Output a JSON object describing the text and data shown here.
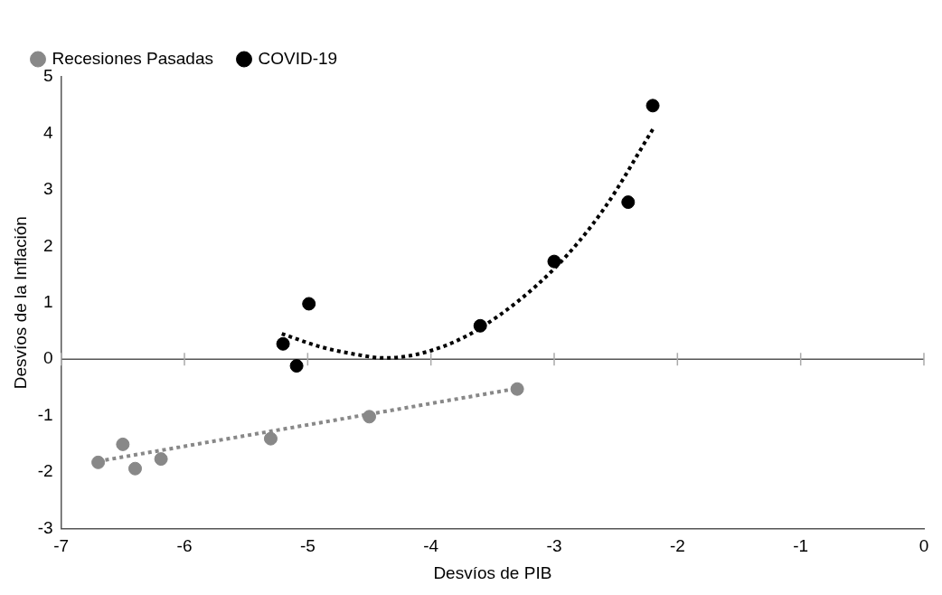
{
  "chart_data": {
    "type": "scatter",
    "xlabel": "Desvíos de PIB",
    "ylabel": "Desvíos de la Inflación",
    "xlim": [
      -7,
      0
    ],
    "xticks": [
      -7,
      -6,
      -5,
      -4,
      -3,
      -2,
      -1,
      0
    ],
    "ylim": [
      -3,
      5
    ],
    "yticks": [
      -3,
      -2,
      -1,
      0,
      1,
      2,
      3,
      4,
      5
    ],
    "legend": "top left",
    "grid": false,
    "ref_lines": [
      {
        "axis": "y",
        "value": 0,
        "color": "#555555",
        "line_style": "solid"
      }
    ],
    "series": [
      {
        "name": "Recesiones Pasadas",
        "color": "#888888",
        "marker": "circle",
        "x": [
          -6.7,
          -6.5,
          -6.4,
          -6.19,
          -5.3,
          -4.5,
          -3.3
        ],
        "values": [
          -1.83,
          -1.51,
          -1.94,
          -1.77,
          -1.41,
          -1.02,
          -0.53
        ]
      },
      {
        "name": "COVID-19",
        "color": "#000000",
        "marker": "circle",
        "x": [
          -5.2,
          -5.09,
          -4.99,
          -3.6,
          -3.0,
          -2.4,
          -2.2
        ],
        "values": [
          0.27,
          -0.12,
          0.98,
          0.59,
          1.73,
          2.78,
          4.49
        ]
      },
      {
        "type": "line",
        "color": "#888888",
        "marker": "none",
        "line_style": "dotted",
        "x": [
          -6.7,
          -3.3
        ],
        "values": [
          -1.81,
          -0.52
        ]
      },
      {
        "type": "line",
        "color": "#000000",
        "marker": "none",
        "line_style": "dotted",
        "x": [
          -5.21,
          -4.9,
          -4.6,
          -4.38,
          -4.0,
          -3.6,
          -3.0,
          -2.6,
          -2.2
        ],
        "values": [
          0.45,
          0.22,
          0.08,
          0.02,
          0.15,
          0.55,
          1.6,
          2.65,
          4.07
        ]
      }
    ]
  }
}
